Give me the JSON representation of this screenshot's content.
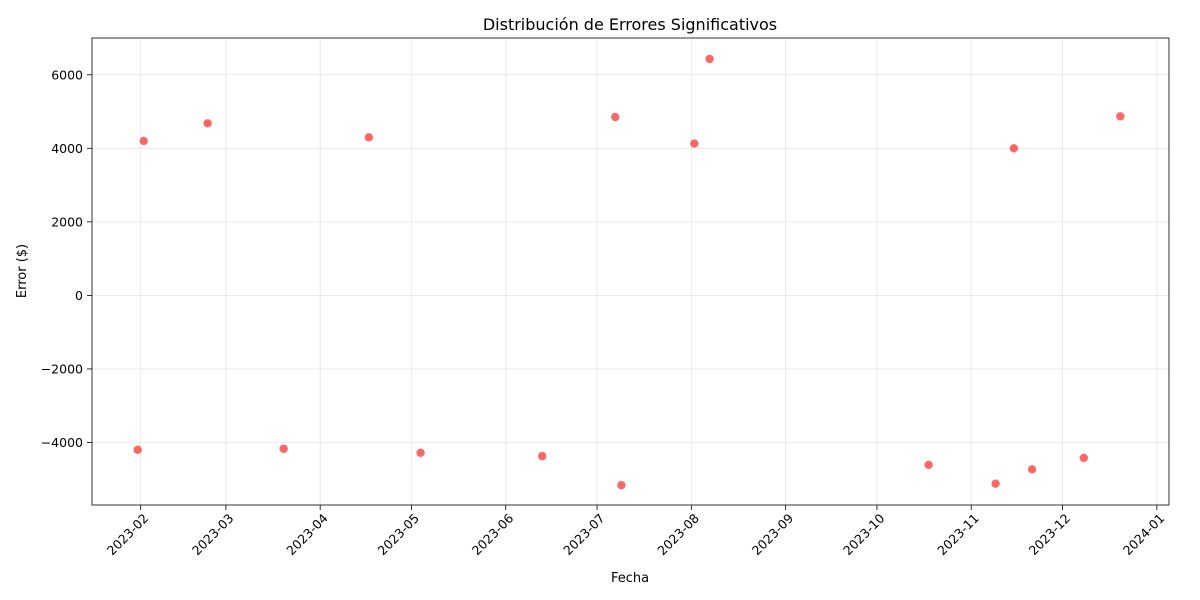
{
  "chart_data": {
    "type": "scatter",
    "title": "Distribución de Errores Significativos",
    "xlabel": "Fecha",
    "ylabel": "Error ($)",
    "xlim": [
      "2023-01-16",
      "2024-01-05"
    ],
    "ylim": [
      -5700,
      7000
    ],
    "x_ticks": [
      "2023-02",
      "2023-03",
      "2023-04",
      "2023-05",
      "2023-06",
      "2023-07",
      "2023-08",
      "2023-09",
      "2023-10",
      "2023-11",
      "2023-12",
      "2024-01"
    ],
    "y_ticks": [
      6000,
      4000,
      2000,
      0,
      -2000,
      -4000
    ],
    "y_tick_labels": [
      "6000",
      "4000",
      "2000",
      "0",
      "−2000",
      "−4000"
    ],
    "grid": true,
    "point_color": "#ff0000",
    "points": [
      {
        "x": "2023-01-31",
        "y": -4200
      },
      {
        "x": "2023-02-02",
        "y": 4200
      },
      {
        "x": "2023-02-23",
        "y": 4680
      },
      {
        "x": "2023-03-20",
        "y": -4170
      },
      {
        "x": "2023-04-17",
        "y": 4300
      },
      {
        "x": "2023-05-04",
        "y": -4280
      },
      {
        "x": "2023-06-13",
        "y": -4370
      },
      {
        "x": "2023-07-07",
        "y": 4850
      },
      {
        "x": "2023-07-09",
        "y": -5160
      },
      {
        "x": "2023-08-02",
        "y": 4130
      },
      {
        "x": "2023-08-07",
        "y": 6430
      },
      {
        "x": "2023-10-18",
        "y": -4610
      },
      {
        "x": "2023-11-09",
        "y": -5120
      },
      {
        "x": "2023-11-15",
        "y": 4000
      },
      {
        "x": "2023-11-21",
        "y": -4730
      },
      {
        "x": "2023-12-08",
        "y": -4420
      },
      {
        "x": "2023-12-20",
        "y": 4870
      }
    ]
  }
}
